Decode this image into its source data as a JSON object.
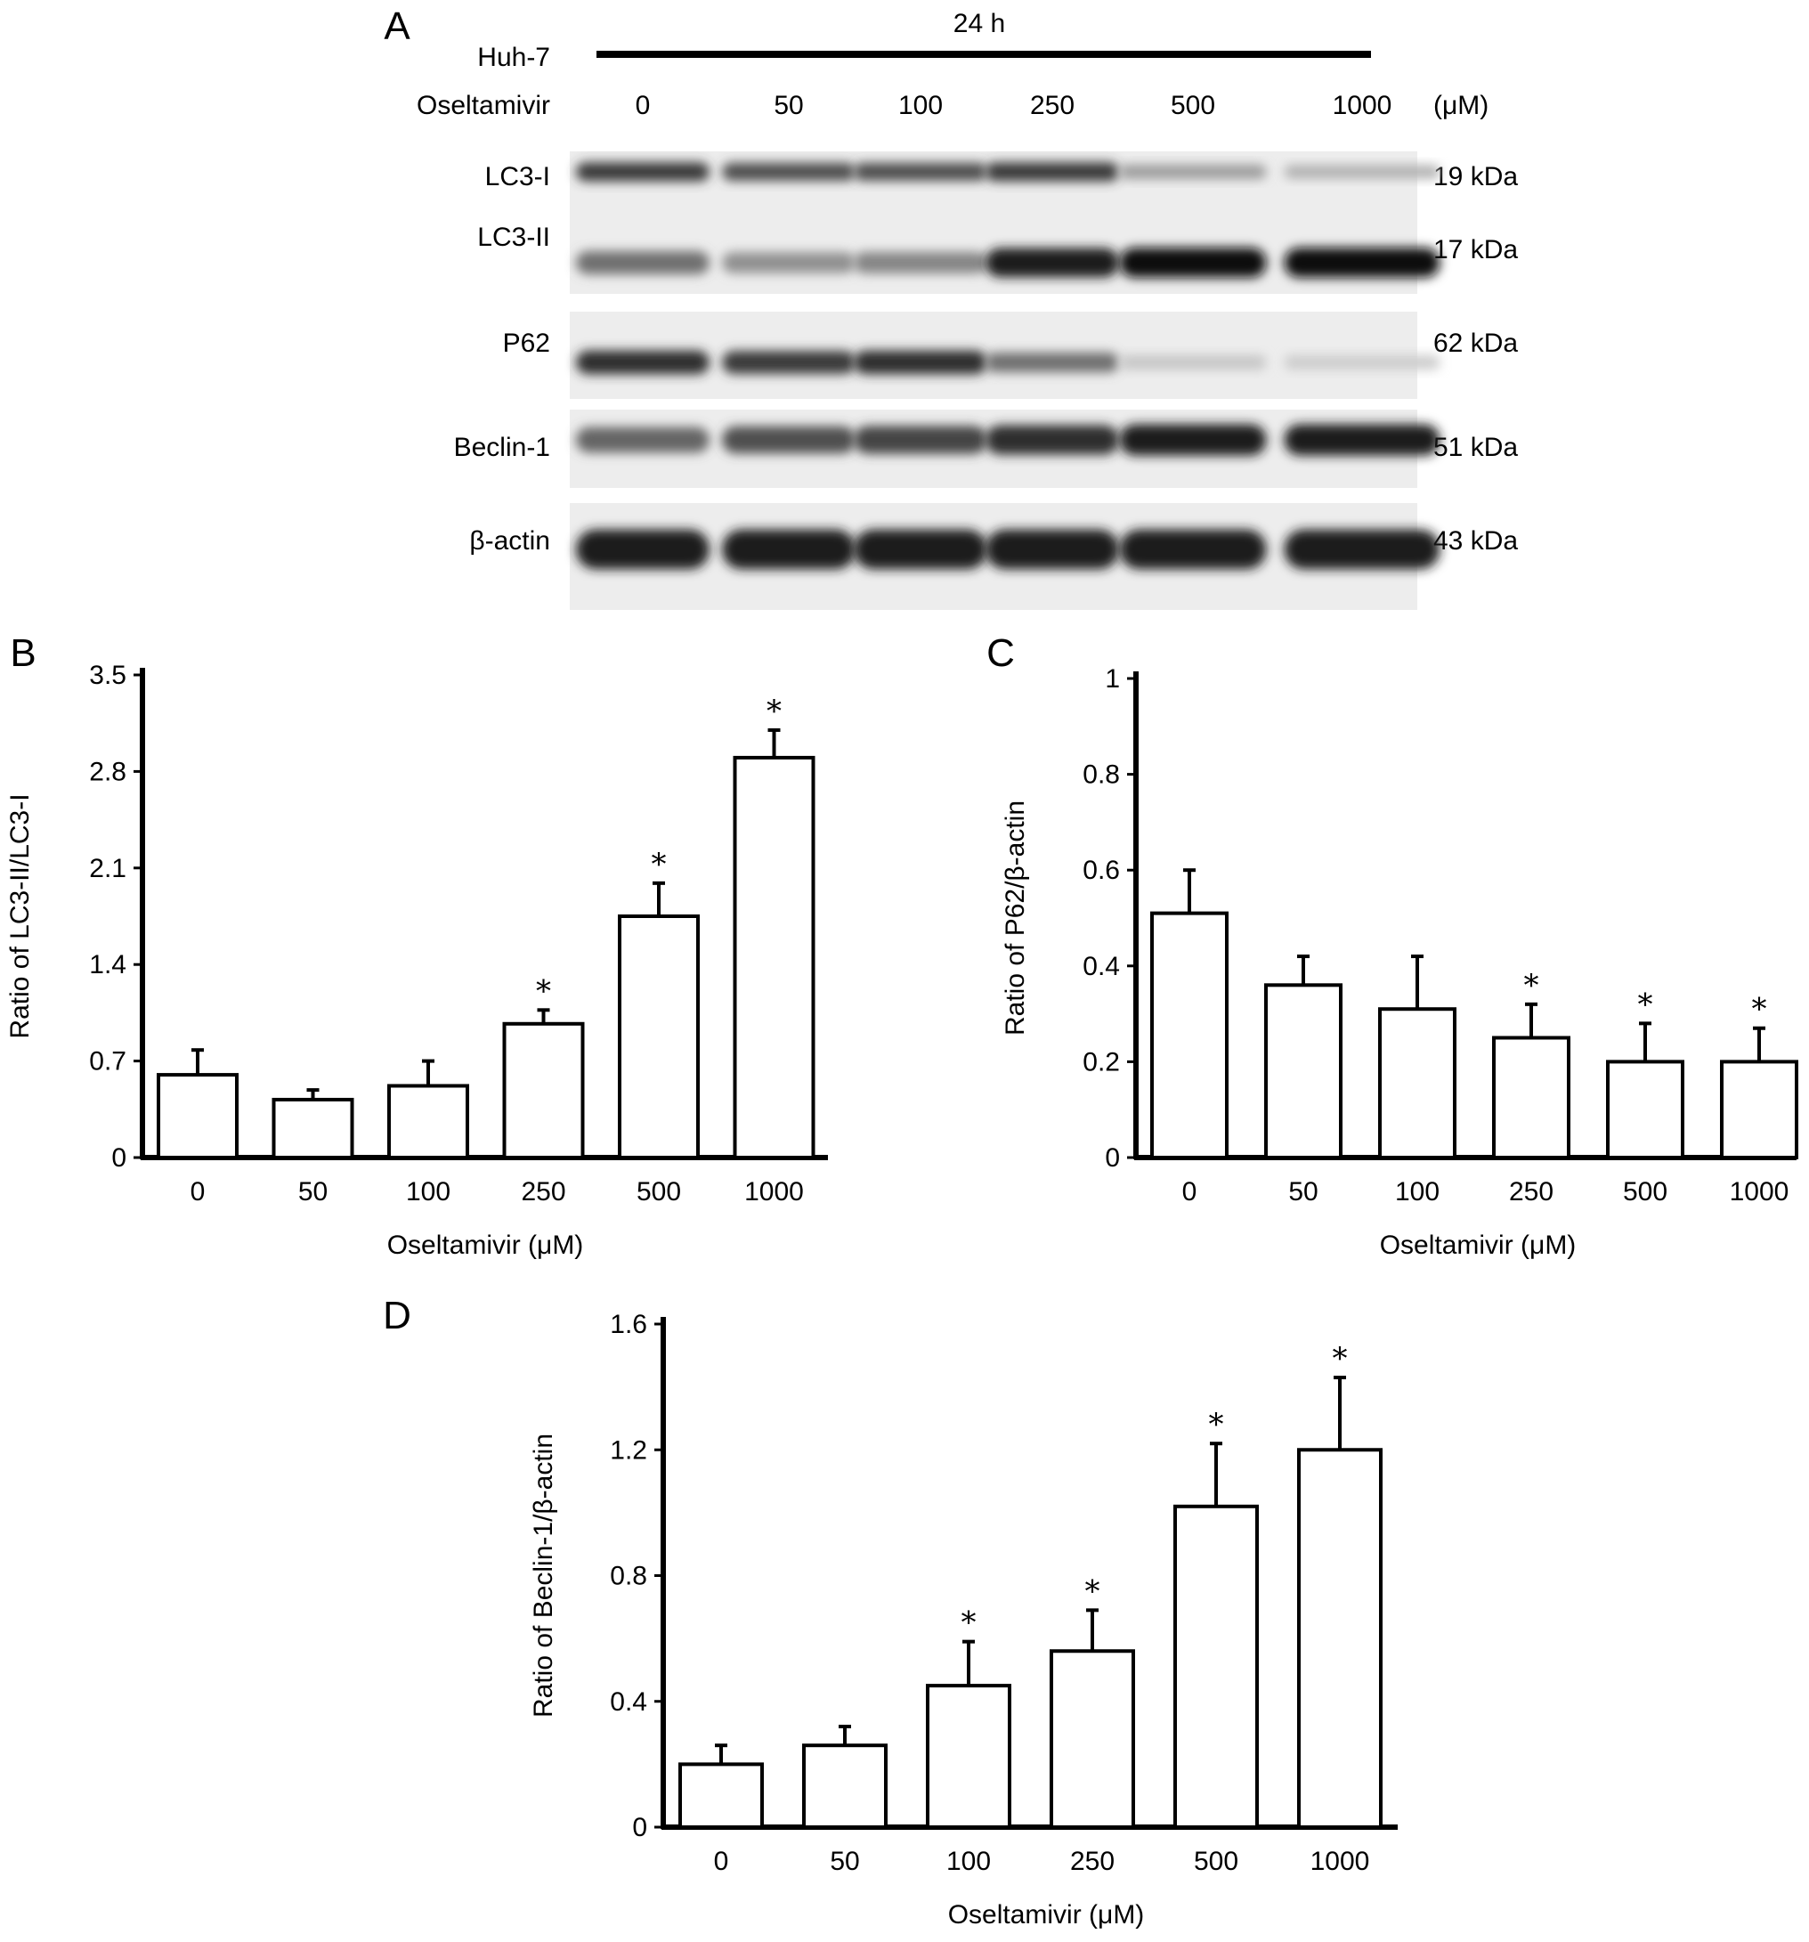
{
  "panel_a": {
    "panel_label": "A",
    "time_label": "24 h",
    "cell_line_label": "Huh-7",
    "treatment_label": "Oseltamivir",
    "doses": [
      "0",
      "50",
      "100",
      "250",
      "500",
      "1000"
    ],
    "unit_label": "(μM)",
    "blots": [
      {
        "protein": "LC3-I",
        "size": "19 kDa",
        "intensity": [
          0.8,
          0.7,
          0.7,
          0.8,
          0.35,
          0.25
        ]
      },
      {
        "protein": "LC3-II",
        "size": "17 kDa",
        "intensity": [
          0.55,
          0.4,
          0.45,
          0.95,
          1.0,
          1.0
        ]
      },
      {
        "protein": "P62",
        "size": "62 kDa",
        "intensity": [
          0.85,
          0.8,
          0.85,
          0.55,
          0.15,
          0.12
        ]
      },
      {
        "protein": "Beclin-1",
        "size": "51 kDa",
        "intensity": [
          0.6,
          0.7,
          0.75,
          0.85,
          0.95,
          0.95
        ]
      },
      {
        "protein": "β-actin",
        "size": "43 kDa",
        "intensity": [
          0.95,
          0.95,
          0.95,
          0.95,
          0.95,
          0.95
        ]
      }
    ]
  },
  "chart_data": [
    {
      "panel_label": "B",
      "type": "bar",
      "categories": [
        "0",
        "50",
        "100",
        "250",
        "500",
        "1000"
      ],
      "values": [
        0.6,
        0.42,
        0.52,
        0.97,
        1.75,
        2.9
      ],
      "errors": [
        0.18,
        0.07,
        0.18,
        0.1,
        0.24,
        0.2
      ],
      "significant": [
        false,
        false,
        false,
        true,
        true,
        true
      ],
      "marker": "*",
      "xlabel": "Oseltamivir (μM)",
      "ylabel": "Ratio of LC3-II/LC3-I",
      "ylim": [
        0,
        3.5
      ],
      "yticks": [
        "0",
        "0.7",
        "1.4",
        "2.1",
        "2.8",
        "3.5"
      ],
      "grid": false
    },
    {
      "panel_label": "C",
      "type": "bar",
      "categories": [
        "0",
        "50",
        "100",
        "250",
        "500",
        "1000"
      ],
      "values": [
        0.51,
        0.36,
        0.31,
        0.25,
        0.2,
        0.2
      ],
      "errors": [
        0.09,
        0.06,
        0.11,
        0.07,
        0.08,
        0.07
      ],
      "significant": [
        false,
        false,
        false,
        true,
        true,
        true
      ],
      "marker": "*",
      "xlabel": "Oseltamivir (μM)",
      "ylabel": "Ratio of P62/β-actin",
      "ylim": [
        0,
        1
      ],
      "yticks": [
        "0",
        "0.2",
        "0.4",
        "0.6",
        "0.8",
        "1"
      ],
      "grid": false
    },
    {
      "panel_label": "D",
      "type": "bar",
      "categories": [
        "0",
        "50",
        "100",
        "250",
        "500",
        "1000"
      ],
      "values": [
        0.2,
        0.26,
        0.45,
        0.56,
        1.02,
        1.2
      ],
      "errors": [
        0.06,
        0.06,
        0.14,
        0.13,
        0.2,
        0.23
      ],
      "significant": [
        false,
        false,
        true,
        true,
        true,
        true
      ],
      "marker": "*",
      "xlabel": "Oseltamivir (μM)",
      "ylabel": "Ratio of Beclin-1/β-actin",
      "ylim": [
        0,
        1.6
      ],
      "yticks": [
        "0",
        "0.4",
        "0.8",
        "1.2",
        "1.6"
      ],
      "grid": false
    }
  ]
}
